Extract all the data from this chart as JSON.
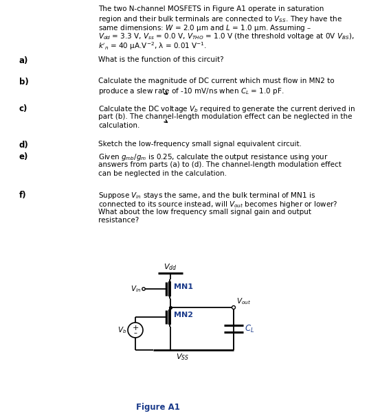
{
  "bg_color": "#ffffff",
  "text_color": "#000000",
  "blue_color": "#1a3a8a",
  "fig_width": 5.37,
  "fig_height": 6.12,
  "figure_label": "Figure A1",
  "circuit": {
    "vdd_label": "$V_{dd}$",
    "vss_label": "$V_{SS}$",
    "vin_label": "$V_{in}$",
    "vout_label": "$V_{out}$",
    "vb_label": "$V_b$",
    "mn1_label": "MN1",
    "mn2_label": "MN2",
    "cl_label": "$C_L$"
  }
}
